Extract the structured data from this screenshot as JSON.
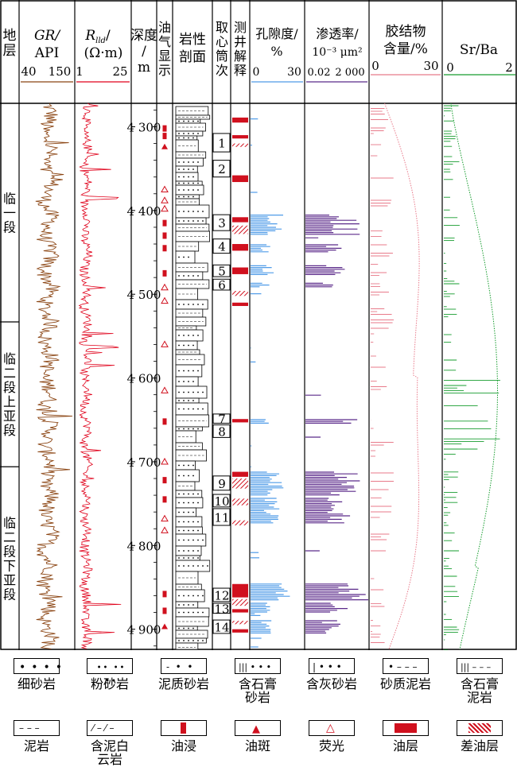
{
  "headers": {
    "stratum": "地层",
    "gr": {
      "name": "GR/",
      "unit": "API",
      "scale": [
        "40",
        "150"
      ]
    },
    "rt": {
      "name": "R",
      "sub": "lld",
      "unit": "(Ω·m)",
      "scale": [
        "1",
        "25"
      ]
    },
    "depth": {
      "name": "深度/",
      "unit": "m"
    },
    "oil_show": "油气显示",
    "lithology": "岩性剖面",
    "coring": "取心筒次",
    "interpretation": "测井解释",
    "porosity": {
      "name": "孔隙度/",
      "unit": "%",
      "scale": [
        "0",
        "30"
      ]
    },
    "permeability": {
      "name": "渗透率/",
      "unit": "10⁻³ μm²",
      "scale": [
        "0.02",
        "2 000"
      ]
    },
    "cement": {
      "name": "胶结物",
      "unit": "含量/%",
      "scale": [
        "0",
        "30"
      ]
    },
    "srba": {
      "name": "Sr/Ba",
      "scale": [
        "0",
        "2"
      ]
    }
  },
  "strata": [
    {
      "label": "临一段",
      "top": 4272,
      "bottom": 4533
    },
    {
      "label": "临二段上亚段",
      "top": 4533,
      "bottom": 4706
    },
    {
      "label": "临二段下亚段",
      "top": 4706,
      "bottom": 4925
    }
  ],
  "colors": {
    "gr": "#8B4513",
    "rt": "#e0001a",
    "porosity": "#4f9be8",
    "permeability": "#5b2a8a",
    "cement": "#e87a8a",
    "srba": "#169c2e",
    "oil": "#d0101e"
  },
  "chart_data": {
    "type": "well-log",
    "depth_axis": {
      "label": "深度/m",
      "range": [
        4272,
        4925
      ],
      "ticks": [
        4300,
        4400,
        4500,
        4600,
        4700,
        4800,
        4900
      ]
    },
    "tracks": {
      "gr": {
        "range": [
          40,
          150
        ]
      },
      "rt": {
        "range": [
          1,
          25
        ]
      },
      "porosity": {
        "range": [
          0,
          30
        ]
      },
      "permeability": {
        "range": [
          0.02,
          2000
        ],
        "scale": "log"
      },
      "cement": {
        "range": [
          0,
          30
        ]
      },
      "srba": {
        "range": [
          0,
          2
        ]
      }
    },
    "core_runs": [
      {
        "n": "1",
        "top": 4308,
        "bottom": 4330
      },
      {
        "n": "2",
        "top": 4340,
        "bottom": 4360
      },
      {
        "n": "3",
        "top": 4405,
        "bottom": 4424
      },
      {
        "n": "4",
        "top": 4434,
        "bottom": 4451
      },
      {
        "n": "5",
        "top": 4465,
        "bottom": 4479
      },
      {
        "n": "6",
        "top": 4482,
        "bottom": 4495
      },
      {
        "n": "7",
        "top": 4643,
        "bottom": 4654
      },
      {
        "n": "8",
        "top": 4656,
        "bottom": 4671
      },
      {
        "n": "9",
        "top": 4717,
        "bottom": 4734
      },
      {
        "n": "10",
        "top": 4739,
        "bottom": 4754
      },
      {
        "n": "11",
        "top": 4756,
        "bottom": 4776
      },
      {
        "n": "12",
        "top": 4851,
        "bottom": 4867
      },
      {
        "n": "13",
        "top": 4869,
        "bottom": 4881
      },
      {
        "n": "14",
        "top": 4889,
        "bottom": 4905
      }
    ],
    "interpretation": [
      {
        "top": 4289,
        "bottom": 4295,
        "type": "oil"
      },
      {
        "top": 4310,
        "bottom": 4314,
        "type": "oil"
      },
      {
        "top": 4320,
        "bottom": 4324,
        "type": "poor"
      },
      {
        "top": 4358,
        "bottom": 4366,
        "type": "oil"
      },
      {
        "top": 4408,
        "bottom": 4414,
        "type": "oil"
      },
      {
        "top": 4418,
        "bottom": 4428,
        "type": "poor"
      },
      {
        "top": 4440,
        "bottom": 4448,
        "type": "oil"
      },
      {
        "top": 4468,
        "bottom": 4476,
        "type": "oil"
      },
      {
        "top": 4496,
        "bottom": 4502,
        "type": "poor"
      },
      {
        "top": 4510,
        "bottom": 4514,
        "type": "oil"
      },
      {
        "top": 4649,
        "bottom": 4653,
        "type": "oil"
      },
      {
        "top": 4712,
        "bottom": 4718,
        "type": "oil"
      },
      {
        "top": 4720,
        "bottom": 4732,
        "type": "poor"
      },
      {
        "top": 4744,
        "bottom": 4752,
        "type": "poor"
      },
      {
        "top": 4770,
        "bottom": 4776,
        "type": "poor"
      },
      {
        "top": 4846,
        "bottom": 4862,
        "type": "oil"
      },
      {
        "top": 4864,
        "bottom": 4872,
        "type": "poor"
      },
      {
        "top": 4876,
        "bottom": 4880,
        "type": "oil"
      },
      {
        "top": 4890,
        "bottom": 4894,
        "type": "poor"
      },
      {
        "top": 4900,
        "bottom": 4904,
        "type": "oil"
      }
    ],
    "oil_shows": [
      {
        "depth": 4302,
        "kind": "stain"
      },
      {
        "depth": 4311,
        "kind": "stain"
      },
      {
        "depth": 4324,
        "kind": "spot"
      },
      {
        "depth": 4375,
        "kind": "fluor"
      },
      {
        "depth": 4388,
        "kind": "fluor"
      },
      {
        "depth": 4398,
        "kind": "fluor"
      },
      {
        "depth": 4415,
        "kind": "stain"
      },
      {
        "depth": 4430,
        "kind": "stain"
      },
      {
        "depth": 4445,
        "kind": "stain"
      },
      {
        "depth": 4475,
        "kind": "stain"
      },
      {
        "depth": 4492,
        "kind": "fluor"
      },
      {
        "depth": 4508,
        "kind": "fluor"
      },
      {
        "depth": 4560,
        "kind": "fluor"
      },
      {
        "depth": 4615,
        "kind": "fluor"
      },
      {
        "depth": 4652,
        "kind": "stain"
      },
      {
        "depth": 4700,
        "kind": "fluor"
      },
      {
        "depth": 4722,
        "kind": "stain"
      },
      {
        "depth": 4745,
        "kind": "stain"
      },
      {
        "depth": 4768,
        "kind": "fluor"
      },
      {
        "depth": 4782,
        "kind": "fluor"
      },
      {
        "depth": 4858,
        "kind": "stain"
      },
      {
        "depth": 4878,
        "kind": "stain"
      },
      {
        "depth": 4897,
        "kind": "spot"
      }
    ],
    "porosity_peaks": [
      {
        "top": 4405,
        "bottom": 4430,
        "max": 18
      },
      {
        "top": 4440,
        "bottom": 4450,
        "max": 12
      },
      {
        "top": 4465,
        "bottom": 4478,
        "max": 13
      },
      {
        "top": 4485,
        "bottom": 4492,
        "max": 10
      },
      {
        "top": 4648,
        "bottom": 4654,
        "max": 17
      },
      {
        "top": 4712,
        "bottom": 4740,
        "max": 18
      },
      {
        "top": 4742,
        "bottom": 4775,
        "max": 15
      },
      {
        "top": 4845,
        "bottom": 4866,
        "max": 22
      },
      {
        "top": 4868,
        "bottom": 4880,
        "max": 14
      },
      {
        "top": 4888,
        "bottom": 4905,
        "max": 12
      }
    ],
    "legend": [
      {
        "key": "fine-sandstone",
        "label": "细砂岩"
      },
      {
        "key": "siltstone",
        "label": "粉砂岩"
      },
      {
        "key": "muddy-sandstone",
        "label": "泥质砂岩"
      },
      {
        "key": "gypsum-sandstone",
        "label": "含石膏砂岩"
      },
      {
        "key": "calcareous-sandstone",
        "label": "含灰砂岩"
      },
      {
        "key": "sandy-mudstone",
        "label": "砂质泥岩"
      },
      {
        "key": "gypsum-mudstone",
        "label": "含石膏泥岩"
      },
      {
        "key": "mudstone",
        "label": "泥岩"
      },
      {
        "key": "muddy-dolomite",
        "label": "含泥白云岩"
      },
      {
        "key": "oil-immersion",
        "label": "油浸"
      },
      {
        "key": "oil-spot",
        "label": "油斑"
      },
      {
        "key": "fluorescence",
        "label": "荧光"
      },
      {
        "key": "oil-layer",
        "label": "油层"
      },
      {
        "key": "poor-oil-layer",
        "label": "差油层"
      }
    ]
  }
}
